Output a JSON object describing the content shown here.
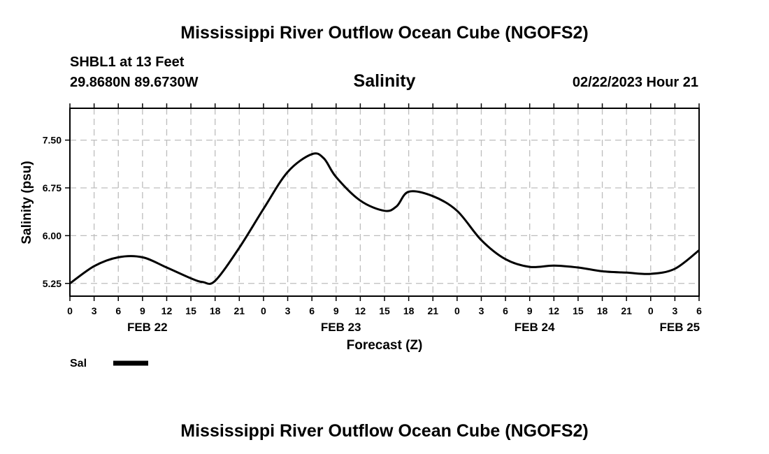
{
  "page": {
    "title": "Mississippi River Outflow Ocean Cube (NGOFS2)",
    "footer_title": "Mississippi River Outflow Ocean Cube (NGOFS2)",
    "station": "SHBL1 at 13 Feet",
    "coords": "29.8680N  89.6730W",
    "run_time": "02/22/2023 Hour 21"
  },
  "chart_data": {
    "type": "line",
    "title": "Salinity",
    "xlabel": "Forecast (Z)",
    "ylabel": "Salinity (psu)",
    "xlim": [
      0,
      78
    ],
    "ylim": [
      5.05,
      8.0
    ],
    "grid": true,
    "y_ticks": [
      5.25,
      6.0,
      6.75,
      7.5
    ],
    "y_tick_labels": [
      "5.25",
      "6.00",
      "6.75",
      "7.50"
    ],
    "x_ticks": [
      0,
      3,
      6,
      9,
      12,
      15,
      18,
      21,
      24,
      27,
      30,
      33,
      36,
      39,
      42,
      45,
      48,
      51,
      54,
      57,
      60,
      63,
      66,
      69,
      72,
      75,
      78
    ],
    "x_tick_labels": [
      "0",
      "3",
      "6",
      "9",
      "12",
      "15",
      "18",
      "21",
      "0",
      "3",
      "6",
      "9",
      "12",
      "15",
      "18",
      "21",
      "0",
      "3",
      "6",
      "9",
      "12",
      "15",
      "18",
      "21",
      "0",
      "3",
      "6"
    ],
    "date_labels": [
      {
        "x": 9.6,
        "label": "FEB 22"
      },
      {
        "x": 33.6,
        "label": "FEB 23"
      },
      {
        "x": 57.6,
        "label": "FEB 24"
      },
      {
        "x": 75.6,
        "label": "FEB 25"
      }
    ],
    "legend": {
      "position": "bottom-left",
      "label": "Sal"
    },
    "series": [
      {
        "name": "Sal",
        "color": "#000000",
        "x": [
          0,
          3,
          6,
          9,
          12,
          15,
          16.5,
          18,
          21,
          24,
          27,
          30,
          31.5,
          33,
          36,
          39,
          40.5,
          42,
          45,
          48,
          51,
          54,
          57,
          60,
          63,
          66,
          69,
          72,
          75,
          78
        ],
        "y": [
          5.25,
          5.52,
          5.66,
          5.66,
          5.5,
          5.33,
          5.27,
          5.29,
          5.81,
          6.42,
          7.0,
          7.28,
          7.21,
          6.92,
          6.55,
          6.39,
          6.46,
          6.69,
          6.62,
          6.39,
          5.93,
          5.63,
          5.51,
          5.53,
          5.5,
          5.44,
          5.42,
          5.4,
          5.48,
          5.77
        ]
      }
    ]
  }
}
